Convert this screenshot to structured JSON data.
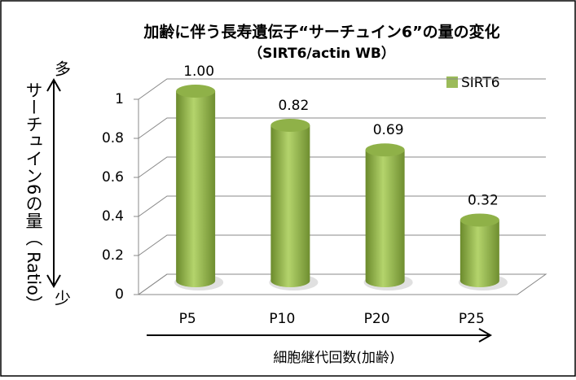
{
  "chart_data": {
    "type": "bar",
    "title": "加齢に伴う長寿遺伝子“サーチュイン6”の量の変化",
    "subtitle": "（SIRT6/actin WB）",
    "y_label": "サーチュイン6の量（ Ratio）",
    "y_high_annotation": "多",
    "y_low_annotation": "少",
    "x_label": "細胞継代回数(加齢)",
    "categories": [
      "P5",
      "P10",
      "P20",
      "P25"
    ],
    "series": [
      {
        "name": "SIRT6",
        "color": "#9bbb59",
        "values": [
          1.0,
          0.82,
          0.69,
          0.32
        ],
        "value_labels": [
          "1.00",
          "0.82",
          "0.69",
          "0.32"
        ]
      }
    ],
    "ylim": [
      0,
      1
    ],
    "yticks": [
      0,
      0.2,
      0.4,
      0.6,
      0.8,
      1
    ],
    "grid": true,
    "legend": "top-right"
  }
}
